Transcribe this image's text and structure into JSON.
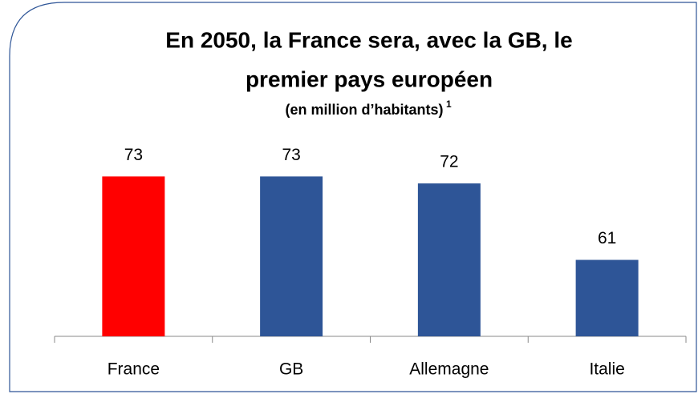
{
  "chart_data": {
    "type": "bar",
    "title": [
      "En 2050, la France sera, avec la GB, le",
      "premier pays européen"
    ],
    "subtitle": "(en million d’habitants)",
    "footnote_mark": "1",
    "categories": [
      "France",
      "GB",
      "Allemagne",
      "Italie"
    ],
    "values": [
      73,
      73,
      72,
      61
    ],
    "colors": [
      "#ff0000",
      "#2e5597",
      "#2e5597",
      "#2e5597"
    ],
    "ylim": [
      50,
      75
    ]
  }
}
